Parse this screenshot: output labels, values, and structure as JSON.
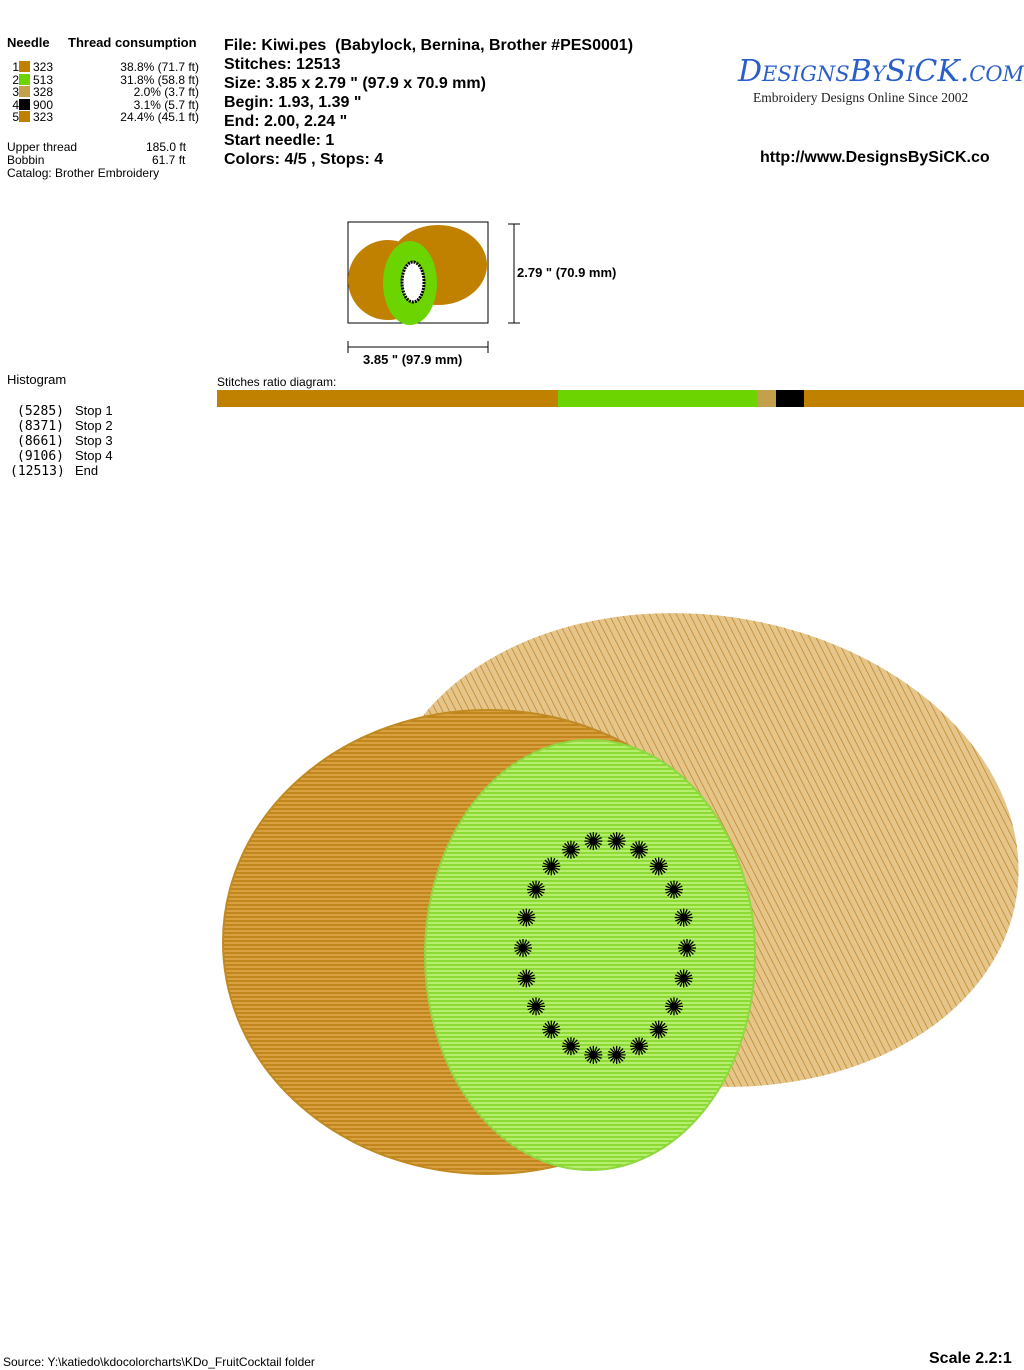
{
  "thread_table": {
    "header_needle": "Needle",
    "header_consumption": "Thread consumption",
    "rows": [
      {
        "needle": "1",
        "code": "323",
        "consumption": "38.8% (71.7 ft)",
        "color": "#c08000"
      },
      {
        "needle": "2",
        "code": "513",
        "consumption": "31.8% (58.8 ft)",
        "color": "#6cd400"
      },
      {
        "needle": "3",
        "code": "328",
        "consumption": "2.0% (3.7 ft)",
        "color": "#c4a04c"
      },
      {
        "needle": "4",
        "code": "900",
        "consumption": "3.1% (5.7 ft)",
        "color": "#000000"
      },
      {
        "needle": "5",
        "code": "323",
        "consumption": "24.4% (45.1 ft)",
        "color": "#c08000"
      }
    ],
    "upper_thread_label": "Upper thread",
    "upper_thread_value": "185.0 ft",
    "bobbin_label": "Bobbin",
    "bobbin_value": "61.7 ft",
    "catalog": "Catalog: Brother Embroidery"
  },
  "design_info": {
    "file": "File: Kiwi.pes  (Babylock, Bernina, Brother #PES0001)",
    "stitches": "Stitches: 12513",
    "size": "Size: 3.85 x 2.79 \" (97.9 x 70.9 mm)",
    "begin": "Begin: 1.93, 1.39 \"",
    "end": "End: 2.00, 2.24 \"",
    "start_needle": "Start needle: 1",
    "colors_stops": "Colors: 4/5 , Stops: 4"
  },
  "logo": {
    "name": "DesignsBySiCK.com",
    "tagline": "Embroidery Designs Online Since 2002",
    "color": "#2a5fc8"
  },
  "url": "http://www.DesignsBySiCK.co",
  "preview": {
    "height_label": "2.79 \" (70.9 mm)",
    "width_label": "3.85 \" (97.9 mm)"
  },
  "histogram": {
    "title": "Histogram",
    "stops": [
      {
        "count": "(5285)",
        "label": "Stop 1",
        "stitches": 5285
      },
      {
        "count": "(8371)",
        "label": "Stop 2",
        "stitches": 8371
      },
      {
        "count": "(8661)",
        "label": "Stop 3",
        "stitches": 8661
      },
      {
        "count": "(9106)",
        "label": "Stop 4",
        "stitches": 9106
      },
      {
        "count": "(12513)",
        "label": "End",
        "stitches": 12513
      }
    ]
  },
  "ratio_diagram": {
    "label": "Stitches ratio diagram:"
  },
  "footer": {
    "source": "Source: Y:\\katiedo\\kdocolorcharts\\KDo_FruitCocktail folder",
    "scale": "Scale 2.2:1"
  }
}
